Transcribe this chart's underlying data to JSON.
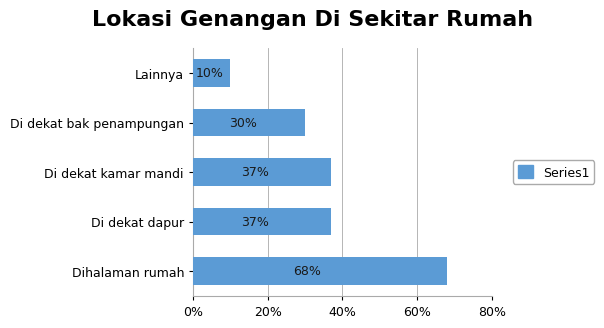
{
  "title": "Lokasi Genangan Di Sekitar Rumah",
  "categories": [
    "Dihalaman rumah",
    "Di dekat dapur",
    "Di dekat kamar mandi",
    "Di dekat bak penampungan",
    "Lainnya"
  ],
  "values": [
    0.68,
    0.37,
    0.37,
    0.3,
    0.1
  ],
  "labels": [
    "68%",
    "37%",
    "37%",
    "30%",
    "10%"
  ],
  "bar_color": "#5B9BD5",
  "background_color": "#ffffff",
  "xlim": [
    0,
    0.8
  ],
  "xticks": [
    0.0,
    0.2,
    0.4,
    0.6,
    0.8
  ],
  "xtick_labels": [
    "0%",
    "20%",
    "40%",
    "60%",
    "80%"
  ],
  "legend_label": "Series1",
  "title_fontsize": 16,
  "label_fontsize": 9,
  "tick_fontsize": 9,
  "bar_height": 0.55
}
